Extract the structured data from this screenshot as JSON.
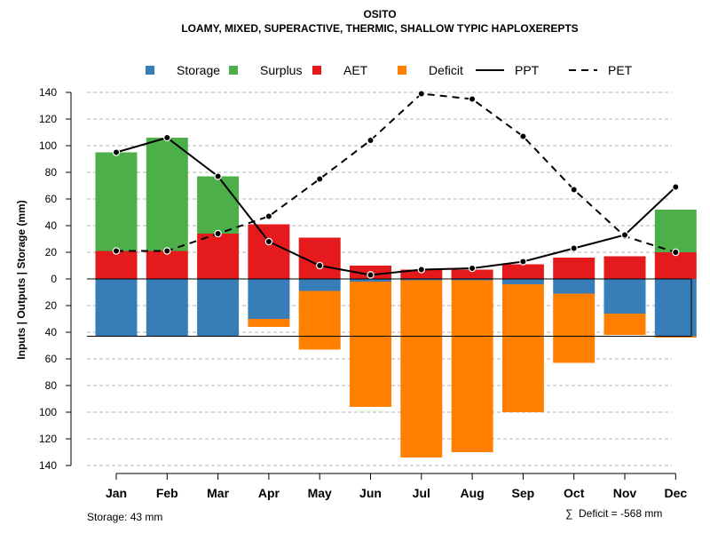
{
  "chart_data": {
    "type": "bar",
    "title": "OSITO",
    "subtitle": "LOAMY, MIXED, SUPERACTIVE, THERMIC, SHALLOW TYPIC HAPLOXEREPTS",
    "ylabel": "Inputs | Outputs | Storage    (mm)",
    "categories": [
      "Jan",
      "Feb",
      "Mar",
      "Apr",
      "May",
      "Jun",
      "Jul",
      "Aug",
      "Sep",
      "Oct",
      "Nov",
      "Dec"
    ],
    "ylim": [
      -140,
      140
    ],
    "yticks": [
      140,
      120,
      100,
      80,
      60,
      40,
      20,
      0,
      -20,
      -40,
      -60,
      -80,
      -100,
      -120,
      -140
    ],
    "ytick_labels": [
      "140",
      "120",
      "100",
      "80",
      "60",
      "40",
      "20",
      "0",
      "20",
      "40",
      "60",
      "80",
      "100",
      "120",
      "140"
    ],
    "grid": true,
    "legend": {
      "placement": "top",
      "items": [
        {
          "label": "Storage",
          "kind": "square",
          "color": "#377EB8"
        },
        {
          "label": "Surplus",
          "kind": "square",
          "color": "#4DAF4A"
        },
        {
          "label": "AET",
          "kind": "square",
          "color": "#E41A1C"
        },
        {
          "label": "Deficit",
          "kind": "square",
          "color": "#FF7F00"
        },
        {
          "label": "PPT",
          "kind": "solid-line",
          "color": "#000000"
        },
        {
          "label": "PET",
          "kind": "dashed-line",
          "color": "#000000"
        }
      ]
    },
    "series": [
      {
        "name": "AET",
        "color": "#E41A1C",
        "values": [
          21,
          21,
          34,
          41,
          31,
          10,
          7,
          7,
          11,
          16,
          17,
          20
        ]
      },
      {
        "name": "Surplus",
        "color": "#4DAF4A",
        "values": [
          74,
          85,
          43,
          0,
          0,
          0,
          0,
          0,
          0,
          0,
          0,
          32
        ]
      },
      {
        "name": "Storage",
        "color": "#377EB8",
        "values": [
          43,
          43,
          43,
          30,
          9,
          2,
          1,
          1,
          4,
          11,
          26,
          43
        ]
      },
      {
        "name": "Deficit",
        "color": "#FF7F00",
        "values": [
          0,
          0,
          0,
          6,
          44,
          94,
          133,
          129,
          96,
          52,
          16,
          1
        ]
      },
      {
        "name": "PPT",
        "color": "#000000",
        "style": "solid",
        "values": [
          95,
          106,
          77,
          28,
          10,
          3,
          7,
          8,
          13,
          23,
          33,
          69
        ]
      },
      {
        "name": "PET",
        "color": "#000000",
        "style": "dashed",
        "values": [
          21,
          21,
          34,
          47,
          75,
          104,
          139,
          135,
          107,
          67,
          32,
          20
        ]
      }
    ],
    "storage_capacity": 43,
    "annotations": {
      "storage": "Storage: 43 mm",
      "deficit_symbol": "∑",
      "deficit": "Deficit = -568 mm"
    }
  }
}
